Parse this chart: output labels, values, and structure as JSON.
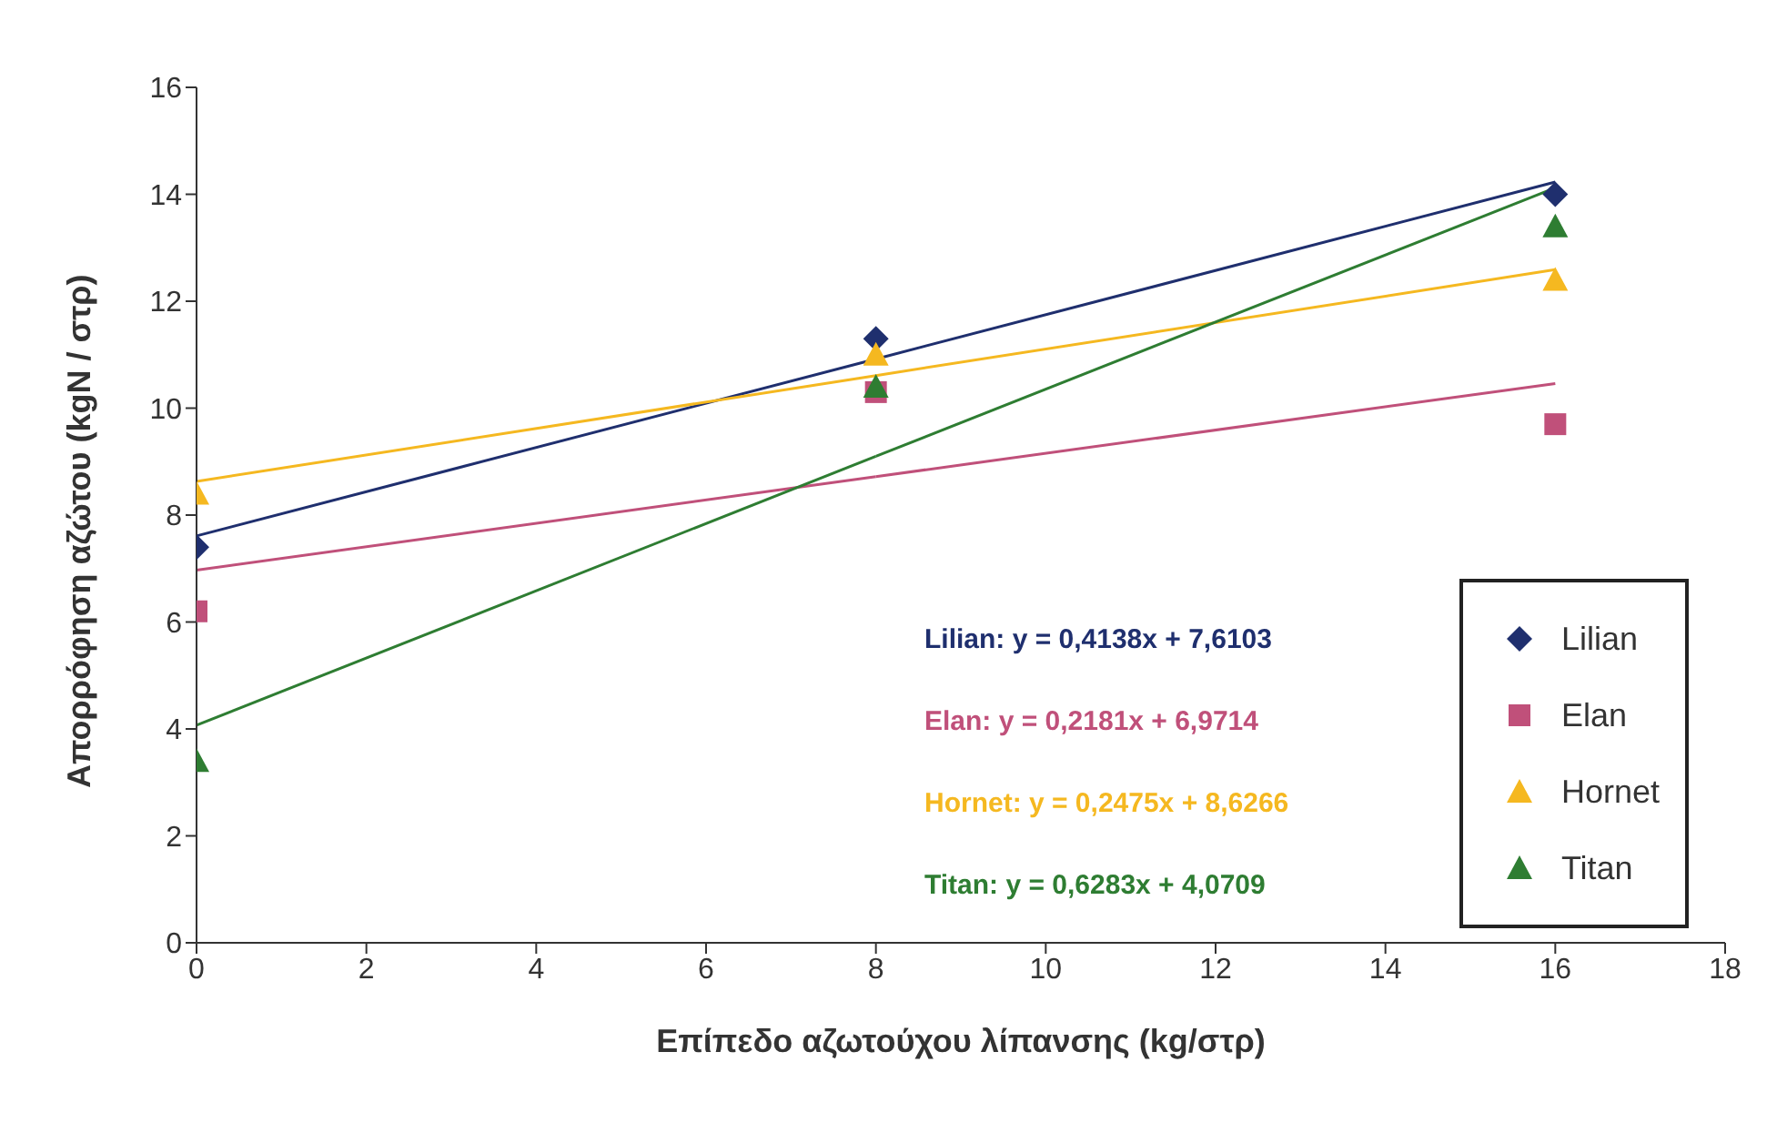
{
  "chart_data": {
    "type": "scatter",
    "xlabel": "Επίπεδο αζωτούχου λίπανσης (kg/στρ)",
    "ylabel": "Απορρόφηση αζώτου (kgN / στρ)",
    "x": [
      0,
      8,
      16
    ],
    "series": [
      {
        "name": "Lilian",
        "color": "#1f2f6e",
        "marker": "diamond",
        "values": [
          7.4,
          11.3,
          14.0
        ]
      },
      {
        "name": "Elan",
        "color": "#c0507a",
        "marker": "square",
        "values": [
          6.2,
          10.3,
          9.7
        ]
      },
      {
        "name": "Hornet",
        "color": "#f5b820",
        "marker": "triangle",
        "values": [
          8.4,
          11.0,
          12.4
        ]
      },
      {
        "name": "Titan",
        "color": "#2e7d32",
        "marker": "triangle",
        "values": [
          3.4,
          10.4,
          13.4
        ]
      },
      {
        "type": "line",
        "color": "#1f2f6e",
        "values": [
          7.61,
          10.92,
          14.23
        ]
      },
      {
        "type": "line",
        "color": "#c0507a",
        "values": [
          6.97,
          8.72,
          10.46
        ]
      },
      {
        "type": "line",
        "color": "#f5b820",
        "values": [
          8.63,
          10.61,
          12.59
        ]
      },
      {
        "type": "line",
        "color": "#2e7d32",
        "values": [
          4.07,
          9.1,
          14.12
        ]
      }
    ],
    "annotations": [
      "Lilian: y = 0,4138x + 7,6103",
      "Elan: y = 0,2181x + 6,9714",
      "Hornet: y = 0,2475x + 8,6266",
      "Titan: y = 0,6283x + 4,0709"
    ],
    "xlim": [
      0,
      18
    ],
    "xticks": [
      0,
      2,
      4,
      6,
      8,
      10,
      12,
      14,
      16,
      18
    ],
    "ylim": [
      0,
      16
    ],
    "yticks": [
      0,
      2,
      4,
      6,
      8,
      10,
      12,
      14,
      16
    ],
    "grid": false,
    "legend": "right"
  }
}
